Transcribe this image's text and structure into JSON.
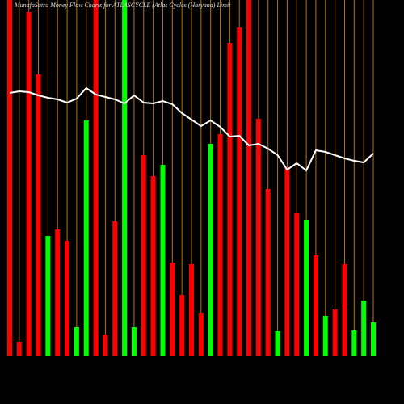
{
  "chart_data": {
    "type": "bar",
    "title": "MunafaSutra  Money Flow  Charts for ATLASCYCLE  (Atlas Cycles  (Haryana) Limit",
    "values": [
      440,
      17,
      425,
      348,
      148,
      156,
      142,
      35,
      291,
      440,
      26,
      166,
      440,
      35,
      248,
      222,
      236,
      115,
      75,
      113,
      53,
      262,
      274,
      387,
      406,
      440,
      293,
      206,
      30,
      233,
      176,
      168,
      124,
      49,
      57,
      113,
      31,
      68,
      41
    ],
    "bar_colors": [
      "#ff0000",
      "#ff0000",
      "#ff0000",
      "#ff0000",
      "#00ff00",
      "#ff0000",
      "#ff0000",
      "#00ff00",
      "#00ff00",
      "#ff0000",
      "#ff0000",
      "#ff0000",
      "#00ff00",
      "#00ff00",
      "#ff0000",
      "#ff0000",
      "#00ff00",
      "#ff0000",
      "#ff0000",
      "#ff0000",
      "#ff0000",
      "#00ff00",
      "#ff0000",
      "#ff0000",
      "#ff0000",
      "#ff0000",
      "#ff0000",
      "#ff0000",
      "#00ff00",
      "#ff0000",
      "#ff0000",
      "#00ff00",
      "#ff0000",
      "#00ff00",
      "#ff0000",
      "#ff0000",
      "#00ff00",
      "#00ff00",
      "#00ff00"
    ],
    "line_values": [
      325,
      327,
      326,
      322,
      319,
      317,
      313,
      318,
      331,
      323,
      320,
      317,
      312,
      322,
      313,
      312,
      315,
      311,
      300,
      292,
      284,
      291,
      283,
      271,
      272,
      260,
      262,
      256,
      248,
      230,
      238,
      229,
      254,
      252,
      248,
      244,
      241,
      239,
      250
    ],
    "line_color": "#ffffff",
    "grid_color": "#b8720b",
    "ylim": [
      0,
      440
    ]
  }
}
